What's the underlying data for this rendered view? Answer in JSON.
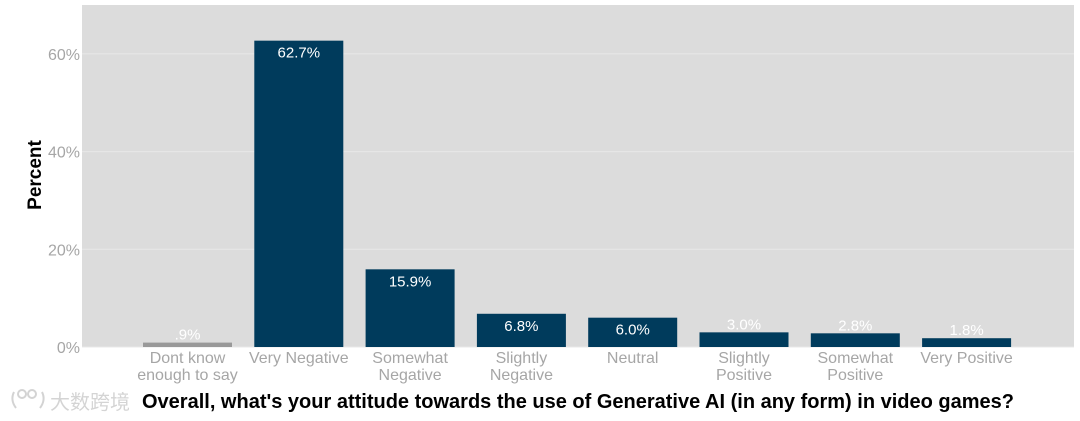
{
  "chart_data": {
    "type": "bar",
    "title": "",
    "xlabel": "Overall, what's your attitude towards the use of Generative AI (in any form) in video games?",
    "ylabel": "Percent",
    "ylim": [
      0,
      70
    ],
    "yticks": [
      0,
      20,
      40,
      60
    ],
    "ytick_labels": [
      "0%",
      "20%",
      "40%",
      "60%"
    ],
    "grid": true,
    "legend": "none",
    "categories": [
      [
        "Dont know",
        "enough to say"
      ],
      [
        "Very Negative"
      ],
      [
        "Somewhat",
        "Negative"
      ],
      [
        "Slightly",
        "Negative"
      ],
      [
        "Neutral"
      ],
      [
        "Slightly",
        "Positive"
      ],
      [
        "Somewhat",
        "Positive"
      ],
      [
        "Very Positive"
      ]
    ],
    "values": [
      0.9,
      62.7,
      15.9,
      6.8,
      6.0,
      3.0,
      2.8,
      1.8
    ],
    "data_labels": [
      ".9%",
      "62.7%",
      "15.9%",
      "6.8%",
      "6.0%",
      "3.0%",
      "2.8%",
      "1.8%"
    ],
    "colors": [
      "#999999",
      "#003b5c",
      "#003b5c",
      "#003b5c",
      "#003b5c",
      "#003b5c",
      "#003b5c",
      "#003b5c"
    ],
    "panel_color": "#dcdcdc",
    "gridline_color": "#e8e8e8"
  },
  "watermark": {
    "text": "大数跨境",
    "icon": "logo-icon"
  }
}
